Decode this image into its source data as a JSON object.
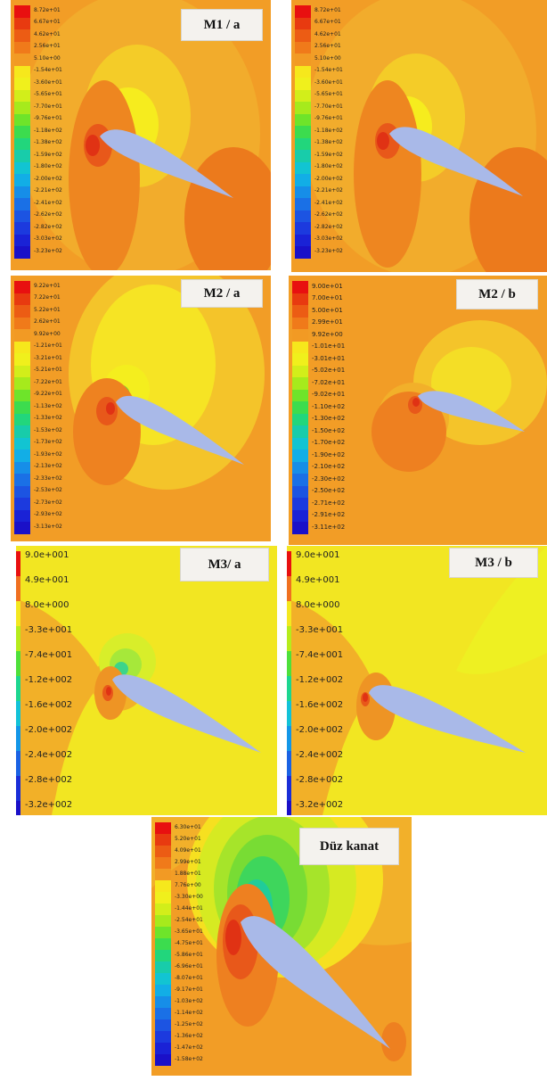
{
  "panels": [
    {
      "id": "m1a",
      "title": "M1 / a",
      "legend": [
        "8.72e+01",
        "6.67e+01",
        "4.62e+01",
        "2.56e+01",
        "5.10e+00",
        "-1.54e+01",
        "-3.60e+01",
        "-5.65e+01",
        "-7.70e+01",
        "-9.76e+01",
        "-1.18e+02",
        "-1.38e+02",
        "-1.59e+02",
        "-1.80e+02",
        "-2.00e+02",
        "-2.21e+02",
        "-2.41e+02",
        "-2.62e+02",
        "-2.82e+02",
        "-3.03e+02",
        "-3.23e+02"
      ]
    },
    {
      "id": "m1b",
      "title": "",
      "legend": [
        "8.72e+01",
        "6.67e+01",
        "4.62e+01",
        "2.56e+01",
        "5.10e+00",
        "-1.54e+01",
        "-3.60e+01",
        "-5.65e+01",
        "-7.70e+01",
        "-9.76e+01",
        "-1.18e+02",
        "-1.38e+02",
        "-1.59e+02",
        "-1.80e+02",
        "-2.00e+02",
        "-2.21e+02",
        "-2.41e+02",
        "-2.62e+02",
        "-2.82e+02",
        "-3.03e+02",
        "-3.23e+02"
      ]
    },
    {
      "id": "m2a",
      "title": "M2 / a",
      "legend": [
        "9.22e+01",
        "7.22e+01",
        "5.22e+01",
        "2.62e+01",
        "9.92e+00",
        "-1.21e+01",
        "-3.21e+01",
        "-5.21e+01",
        "-7.22e+01",
        "-9.22e+01",
        "-1.13e+02",
        "-1.33e+02",
        "-1.53e+02",
        "-1.73e+02",
        "-1.93e+02",
        "-2.13e+02",
        "-2.33e+02",
        "-2.53e+02",
        "-2.73e+02",
        "-2.93e+02",
        "-3.13e+02"
      ]
    },
    {
      "id": "m2b",
      "title": "M2 / b",
      "legend": [
        "9.00e+01",
        "7.00e+01",
        "5.00e+01",
        "2.99e+01",
        "9.92e+00",
        "-1.01e+01",
        "-3.01e+01",
        "-5.02e+01",
        "-7.02e+01",
        "-9.02e+01",
        "-1.10e+02",
        "-1.30e+02",
        "-1.50e+02",
        "-1.70e+02",
        "-1.90e+02",
        "-2.10e+02",
        "-2.30e+02",
        "-2.50e+02",
        "-2.71e+02",
        "-2.91e+02",
        "-3.11e+02"
      ]
    },
    {
      "id": "m3a",
      "title": "M3/ a",
      "legend": [
        "9.0e+001",
        "4.9e+001",
        "8.0e+000",
        "-3.3e+001",
        "-7.4e+001",
        "-1.2e+002",
        "-1.6e+002",
        "-2.0e+002",
        "-2.4e+002",
        "-2.8e+002",
        "-3.2e+002"
      ]
    },
    {
      "id": "m3b",
      "title": "M3 / b",
      "legend": [
        "9.0e+001",
        "4.9e+001",
        "8.0e+000",
        "-3.3e+001",
        "-7.4e+001",
        "-1.2e+002",
        "-1.6e+002",
        "-2.0e+002",
        "-2.4e+002",
        "-2.8e+002",
        "-3.2e+002"
      ]
    },
    {
      "id": "duz",
      "title": "Düz kanat",
      "legend": [
        "6.30e+01",
        "5.20e+01",
        "4.09e+01",
        "2.99e+01",
        "1.88e+01",
        "7.76e+00",
        "-3.30e+00",
        "-1.44e+01",
        "-2.54e+01",
        "-3.65e+01",
        "-4.75e+01",
        "-5.86e+01",
        "-6.96e+01",
        "-8.07e+01",
        "-9.17e+01",
        "-1.03e+02",
        "-1.14e+02",
        "-1.25e+02",
        "-1.36e+02",
        "-1.47e+02",
        "-1.58e+02"
      ]
    }
  ],
  "colors": {
    "background": "#f2a127",
    "wing": "#a9b9e8",
    "palette_21": [
      "#e81010",
      "#e83a10",
      "#ec5c14",
      "#f07a1a",
      "#f29a24",
      "#f6e81c",
      "#f0f01c",
      "#d2ee1a",
      "#a6ea1c",
      "#6ee42a",
      "#3cdc4e",
      "#22d67c",
      "#18ccaa",
      "#12c4d2",
      "#12aee6",
      "#168ee8",
      "#1a70e6",
      "#1c54e2",
      "#1c3ade",
      "#1a22d6",
      "#1a10c8"
    ],
    "palette_11": [
      "#e81010",
      "#f07020",
      "#f4e820",
      "#b6ec1c",
      "#4ee03a",
      "#1cd690",
      "#12c2d8",
      "#1396e8",
      "#1a62e4",
      "#1a2ed8",
      "#1a10c8"
    ]
  }
}
